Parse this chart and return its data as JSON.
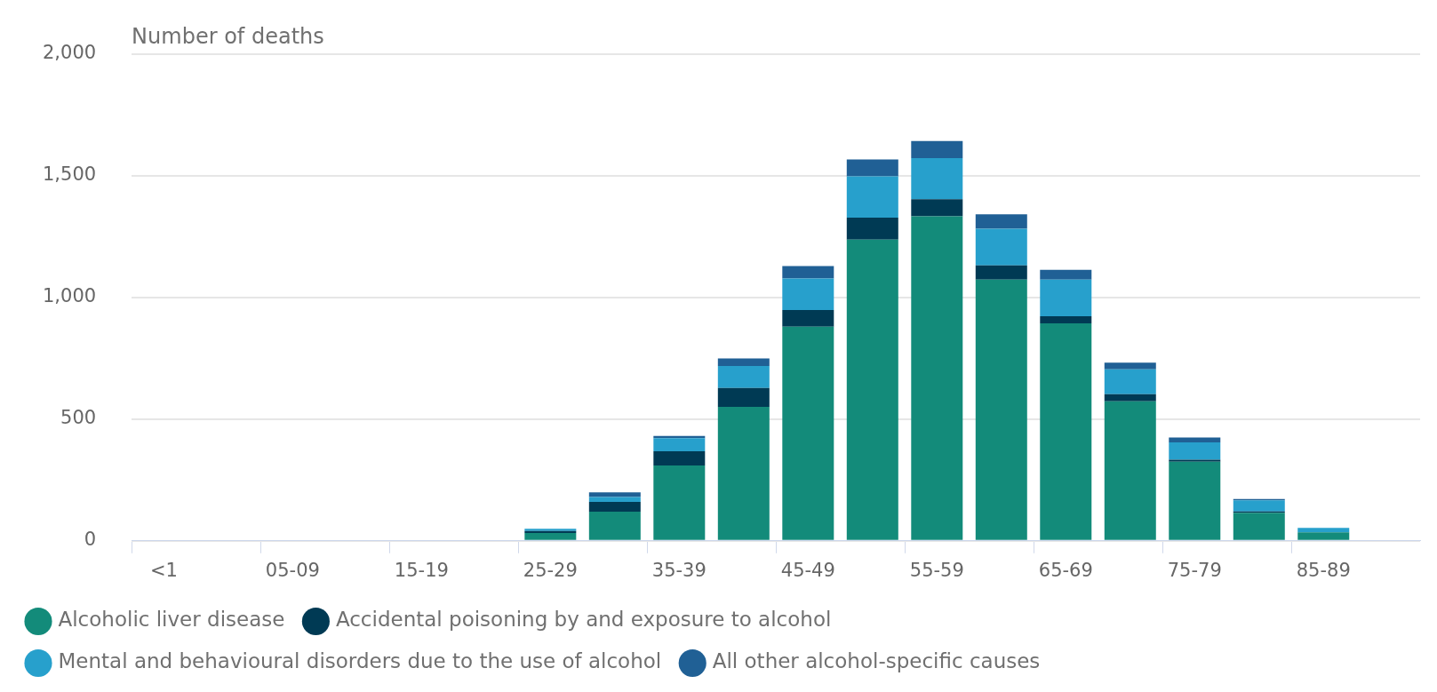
{
  "chart_data": {
    "type": "bar",
    "ylabel": "Number of deaths",
    "categories": [
      "<1",
      null,
      "05-09",
      null,
      "15-19",
      null,
      "25-29",
      null,
      "35-39",
      null,
      "45-49",
      null,
      "55-59",
      null,
      "65-69",
      null,
      "75-79",
      null,
      "85-89",
      null
    ],
    "series": [
      {
        "name": "Alcoholic liver disease",
        "color": "#138b7a",
        "values": [
          0,
          0,
          0,
          0,
          0,
          0,
          32,
          120,
          309,
          550,
          879,
          1237,
          1333,
          1073,
          893,
          573,
          325,
          115,
          35,
          0
        ]
      },
      {
        "name": "Accidental poisoning by and exposure to alcohol",
        "color": "#003a54",
        "values": [
          0,
          0,
          0,
          0,
          0,
          0,
          8,
          40,
          59,
          78,
          69,
          90,
          70,
          58,
          29,
          29,
          8,
          6,
          0,
          0
        ]
      },
      {
        "name": "Mental and behavioural disorders due to the use of alcohol",
        "color": "#27a0cc",
        "values": [
          0,
          0,
          0,
          0,
          0,
          0,
          9,
          20,
          54,
          90,
          129,
          170,
          169,
          151,
          151,
          102,
          71,
          45,
          18,
          0
        ]
      },
      {
        "name": "All other alcohol-specific causes",
        "color": "#206095",
        "values": [
          0,
          0,
          0,
          0,
          0,
          0,
          null,
          19,
          9,
          31,
          51,
          69,
          70,
          59,
          40,
          28,
          20,
          6,
          0,
          0
        ]
      }
    ],
    "stacked": true,
    "ylim": [
      0,
      2000
    ],
    "yticks": [
      {
        "value": 0,
        "label": "0"
      },
      {
        "value": 500,
        "label": "500"
      },
      {
        "value": 1000,
        "label": "1,000"
      },
      {
        "value": 1500,
        "label": "1,500"
      },
      {
        "value": 2000,
        "label": "2,000"
      }
    ],
    "grid": "y",
    "legend": "bottom"
  }
}
